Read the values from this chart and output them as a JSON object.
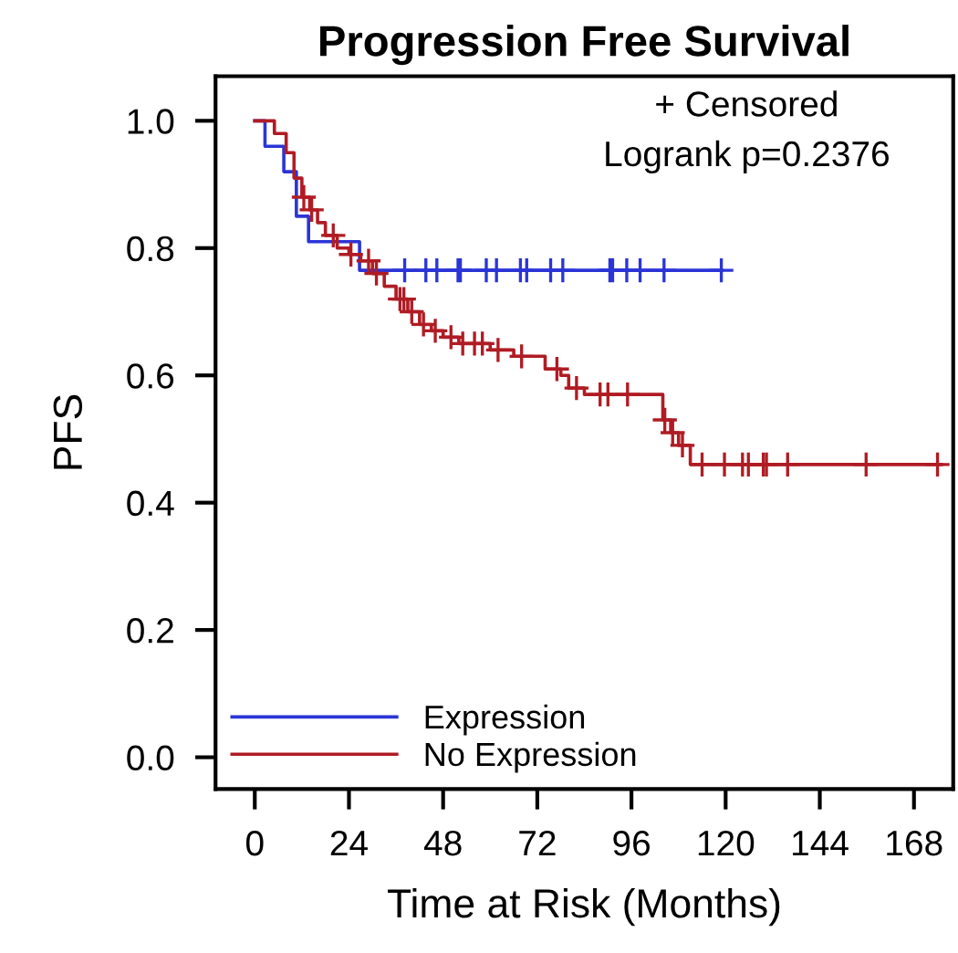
{
  "chart_data": {
    "type": "step",
    "title": "Progression Free Survival",
    "xlabel": "Time at Risk (Months)",
    "ylabel": "PFS",
    "annotations": [
      "+ Censored",
      "Logrank p=0.2376"
    ],
    "xlim": [
      -10,
      178
    ],
    "xticks": [
      0,
      24,
      48,
      72,
      96,
      120,
      144,
      168
    ],
    "ylim": [
      -0.05,
      1.07
    ],
    "yticks": [
      {
        "value": 0,
        "label": "0.0"
      },
      {
        "value": 0.2,
        "label": "0.2"
      },
      {
        "value": 0.4,
        "label": "0.4"
      },
      {
        "value": 0.6,
        "label": "0.6"
      },
      {
        "value": 0.8,
        "label": "0.8"
      },
      {
        "value": 1,
        "label": "1.0"
      }
    ],
    "grid": false,
    "legend": "bottom left",
    "series": [
      {
        "name": "Expression",
        "color": "#2b35d6",
        "line_style": "solid",
        "x": [
          0,
          2.6,
          7.4,
          10.6,
          13.7,
          26.7,
          119
        ],
        "values": [
          1.0,
          0.96,
          0.92,
          0.85,
          0.81,
          0.765,
          0.765
        ]
      },
      {
        "name": "No Expression",
        "color": "#b01c24",
        "line_style": "solid",
        "x": [
          0,
          5,
          8,
          10,
          12,
          14,
          16,
          18,
          21,
          24,
          27,
          30,
          33,
          36,
          39,
          42,
          45,
          48,
          52,
          60,
          66,
          74,
          78,
          80,
          84,
          104,
          106,
          108,
          111,
          175
        ],
        "values": [
          1.0,
          0.98,
          0.95,
          0.91,
          0.88,
          0.86,
          0.84,
          0.82,
          0.8,
          0.79,
          0.78,
          0.76,
          0.74,
          0.72,
          0.7,
          0.68,
          0.67,
          0.66,
          0.65,
          0.64,
          0.63,
          0.61,
          0.6,
          0.58,
          0.57,
          0.53,
          0.51,
          0.49,
          0.46,
          0.46
        ]
      },
      {
        "type": "scatter",
        "marker": "cross",
        "color": "#2b35d6",
        "x": [
          38.2,
          43.6,
          46.4,
          51.8,
          52.4,
          59,
          61.6,
          67.7,
          69.3,
          75.4,
          78.5,
          90.5,
          91.2,
          94.8,
          98.2,
          104.3,
          118.9
        ],
        "values": [
          0.765,
          0.765,
          0.765,
          0.765,
          0.765,
          0.765,
          0.765,
          0.765,
          0.765,
          0.765,
          0.765,
          0.765,
          0.765,
          0.765,
          0.765,
          0.765,
          0.765
        ]
      },
      {
        "type": "scatter",
        "marker": "cross",
        "color": "#b01c24",
        "x": [
          12.5,
          14.5,
          20,
          24.5,
          29,
          31,
          37,
          38,
          40,
          43,
          46,
          50,
          53,
          56,
          58,
          62,
          68,
          77,
          82,
          88,
          90,
          95,
          104.5,
          106.5,
          109,
          114,
          119.7,
          124.3,
          125.8,
          129.6,
          130.4,
          135.8,
          155.8,
          174
        ],
        "values": [
          0.88,
          0.86,
          0.82,
          0.79,
          0.78,
          0.76,
          0.72,
          0.72,
          0.7,
          0.68,
          0.67,
          0.66,
          0.65,
          0.65,
          0.65,
          0.64,
          0.63,
          0.61,
          0.58,
          0.57,
          0.57,
          0.57,
          0.53,
          0.51,
          0.49,
          0.46,
          0.46,
          0.46,
          0.46,
          0.46,
          0.46,
          0.46,
          0.46,
          0.46
        ]
      }
    ]
  }
}
